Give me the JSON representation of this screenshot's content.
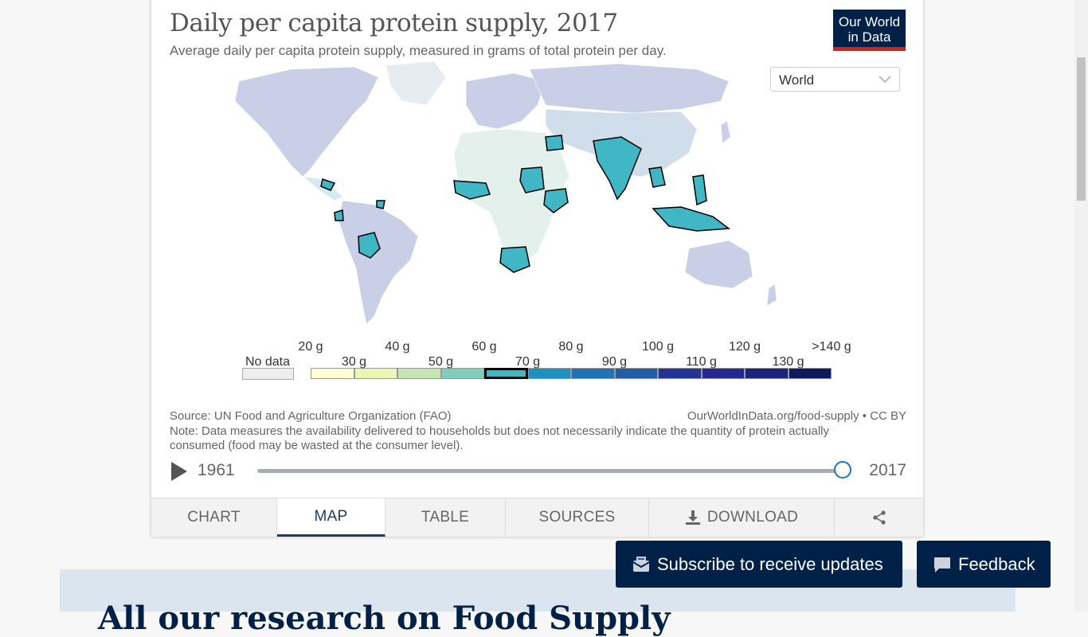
{
  "chart": {
    "title": "Daily per capita protein supply, 2017",
    "subtitle": "Average daily per capita protein supply, measured in grams of total protein per day.",
    "logo_line1": "Our World",
    "logo_line2": "in Data",
    "region_selected": "World"
  },
  "chart_data": {
    "type": "choropleth-map",
    "title": "Daily per capita protein supply, 2017",
    "legend": {
      "no_data_label": "No data",
      "bins": [
        "20 g",
        "30 g",
        "40 g",
        "50 g",
        "60 g",
        "70 g",
        "80 g",
        "90 g",
        "100 g",
        "110 g",
        "120 g",
        "130 g",
        ">140 g"
      ],
      "colors": [
        "#ffffd4",
        "#ecf5b3",
        "#c5e6b3",
        "#7fcdbb",
        "#41b6c4",
        "#1d91c0",
        "#2171b5",
        "#225ea8",
        "#253494",
        "#23298e",
        "#1a237e",
        "#0d1b5e",
        "#081d58"
      ],
      "highlighted_bin": "60–70 g",
      "highlight_color": "#41b6c4"
    }
  },
  "footer": {
    "source": "Source: UN Food and Agriculture Organization (FAO)",
    "url": "OurWorldInData.org/food-supply • CC BY",
    "note": "Note: Data measures the availability delivered to households but does not necessarily indicate the quantity of protein actually consumed (food may be wasted at the consumer level)."
  },
  "timeline": {
    "start_year": "1961",
    "end_year": "2017",
    "position": 1.0
  },
  "tabs": [
    {
      "label": "CHART"
    },
    {
      "label": "MAP"
    },
    {
      "label": "TABLE"
    },
    {
      "label": "SOURCES"
    },
    {
      "label": "DOWNLOAD"
    }
  ],
  "buttons": {
    "subscribe": "Subscribe to receive updates",
    "feedback": "Feedback"
  },
  "below": {
    "heading_partial": "All our research on Food Supply"
  },
  "colors": {
    "brand_navy": "#002147",
    "brand_red": "#ce261e",
    "accent_blue": "#1a77c6",
    "highlight_teal": "#41b6c4",
    "map_default": "#c9cfe6"
  },
  "icons": {
    "play": "play-icon",
    "chevron": "chevron-down-icon",
    "download": "download-icon",
    "share": "share-icon",
    "subscribe": "envelope-icon",
    "feedback": "speech-bubble-icon"
  }
}
